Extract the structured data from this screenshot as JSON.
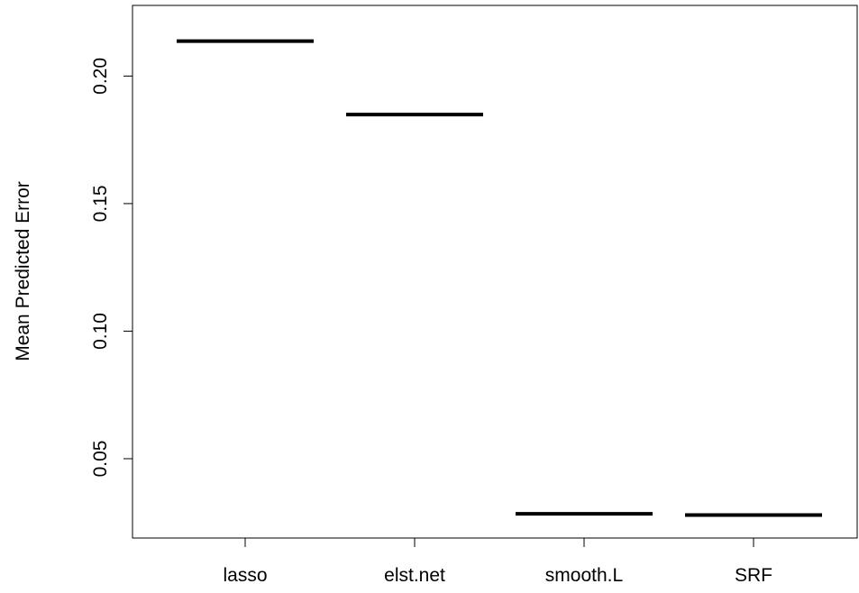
{
  "chart_data": {
    "type": "boxplot",
    "title": "",
    "xlabel": "",
    "ylabel": "Mean Predicted Error",
    "categories": [
      "lasso",
      "elst.net",
      "smooth.L",
      "SRF"
    ],
    "values": [
      0.2137,
      0.1849,
      0.0284,
      0.0279
    ],
    "ylim": [
      0.0189,
      0.2277
    ],
    "yticks": [
      0.05,
      0.1,
      0.15,
      0.2
    ],
    "ytick_labels": [
      "0.05",
      "0.10",
      "0.15",
      "0.20"
    ],
    "grid": false,
    "legend": "none"
  }
}
